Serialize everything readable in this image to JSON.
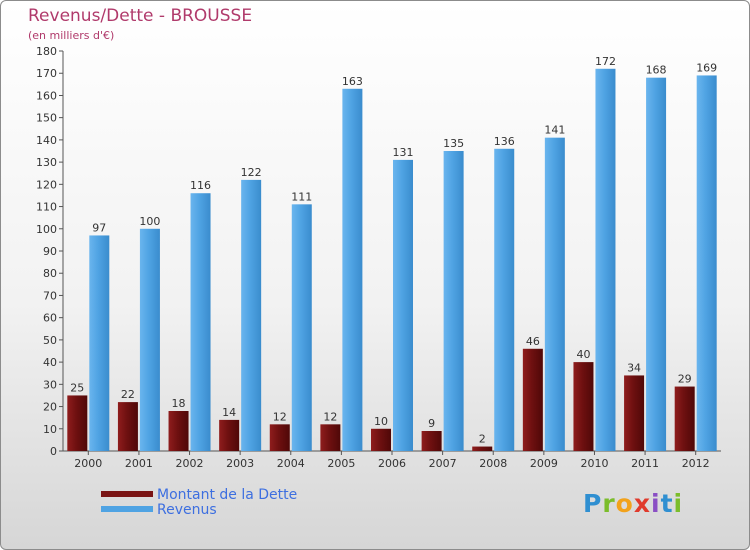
{
  "title": "Revenus/Dette - BROUSSE",
  "subtitle": "(en milliers d'€)",
  "logo": "Proxiti",
  "colors": {
    "title": "#b03a6b",
    "dette": "#7a1414",
    "revenus": "#4fa3e3",
    "legend_text": "#3d6fe0"
  },
  "chart_data": {
    "type": "bar",
    "title": "Revenus/Dette - BROUSSE",
    "ylabel": "(en milliers d'€)",
    "xlabel": "",
    "categories": [
      "2000",
      "2001",
      "2002",
      "2003",
      "2004",
      "2005",
      "2006",
      "2007",
      "2008",
      "2009",
      "2010",
      "2011",
      "2012"
    ],
    "series": [
      {
        "name": "Montant de la Dette",
        "values": [
          25,
          22,
          18,
          14,
          12,
          12,
          10,
          9,
          2,
          46,
          40,
          34,
          29
        ]
      },
      {
        "name": "Revenus",
        "values": [
          97,
          100,
          116,
          122,
          111,
          163,
          131,
          135,
          136,
          141,
          172,
          168,
          169
        ]
      }
    ],
    "ylim": [
      0,
      180
    ],
    "yticks": [
      0,
      10,
      20,
      30,
      40,
      50,
      60,
      70,
      80,
      90,
      100,
      110,
      120,
      130,
      140,
      150,
      160,
      170,
      180
    ],
    "grid": false,
    "legend": "bottom-left"
  }
}
